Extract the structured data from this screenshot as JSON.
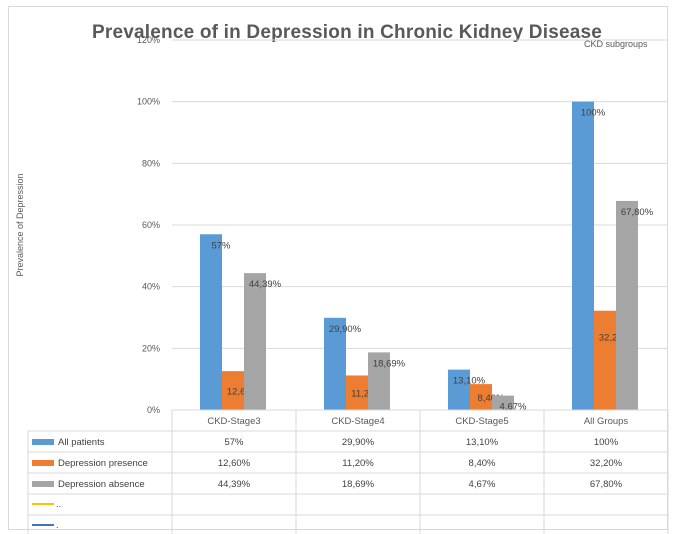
{
  "chart_data": {
    "type": "bar",
    "title": "Prevalence of in Depression in Chronic Kidney Disease",
    "legend_title": "CKD subgroups",
    "ylabel": "Prevalence of Depression",
    "xlabel": "",
    "ylim": [
      0,
      120
    ],
    "yticks": [
      "0%",
      "20%",
      "40%",
      "60%",
      "80%",
      "100%",
      "120%"
    ],
    "grid": true,
    "categories": [
      "CKD-Stage3",
      "CKD-Stage4",
      "CKD-Stage5",
      "All Groups"
    ],
    "series": [
      {
        "name": "All patients",
        "color": "#5b9bd5",
        "values": [
          57,
          29.9,
          13.1,
          100
        ],
        "labels": [
          "57%",
          "29,90%",
          "13,10%",
          "100%"
        ]
      },
      {
        "name": "Depression presence",
        "color": "#ed7d31",
        "values": [
          12.6,
          11.2,
          8.4,
          32.2
        ],
        "labels": [
          "12,60%",
          "11,20%",
          "8,40%",
          "32,20%"
        ]
      },
      {
        "name": "Depression absence",
        "color": "#a5a5a5",
        "values": [
          44.39,
          18.69,
          4.67,
          67.8
        ],
        "labels": [
          "44,39%",
          "18,69%",
          "4,67%",
          "67,80%"
        ]
      }
    ],
    "extra_rows": [
      {
        "name": "..",
        "color": "#ffc000"
      },
      {
        "name": ".",
        "color": "#4472c4"
      }
    ]
  }
}
